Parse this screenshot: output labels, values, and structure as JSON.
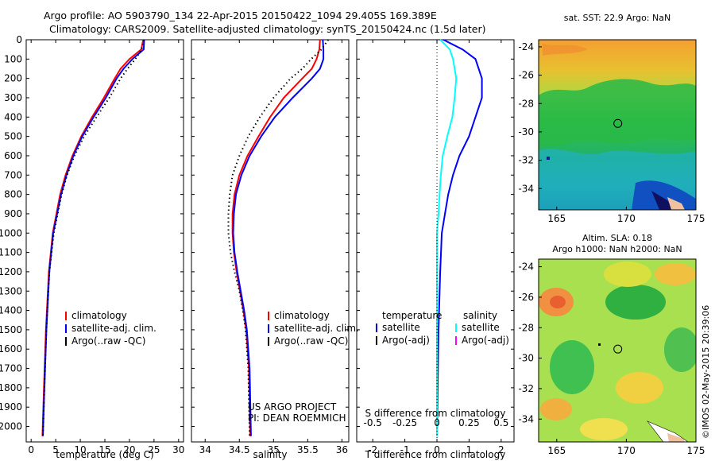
{
  "title": {
    "line1": "Argo profile: AO 5903790_134 22-Apr-2015 20150422_1094 29.405S 169.389E",
    "line2": "Climatology: CARS2009. Satellite-adjusted climatology: synTS_20150424.nc (1.5d later)"
  },
  "chart_data": [
    {
      "type": "line",
      "id": "temperature",
      "xlabel": "temperature (deg C)",
      "ylabel": "",
      "xlim": [
        -1,
        31
      ],
      "ylim": [
        2080,
        0
      ],
      "xticks": [
        "0",
        "5",
        "10",
        "15",
        "20",
        "25",
        "30"
      ],
      "yticks": [
        "0",
        "100",
        "200",
        "300",
        "400",
        "500",
        "600",
        "700",
        "800",
        "900",
        "1000",
        "1100",
        "1200",
        "1300",
        "1400",
        "1500",
        "1600",
        "1700",
        "1800",
        "1900",
        "2000"
      ],
      "depth": [
        0,
        50,
        100,
        150,
        200,
        300,
        400,
        500,
        600,
        700,
        800,
        1000,
        1200,
        1500,
        1800,
        2050
      ],
      "series": [
        {
          "name": "climatology",
          "color": "#ff0000",
          "style": "solid",
          "values": [
            22.8,
            22.4,
            20.0,
            18.2,
            17.0,
            14.8,
            12.4,
            10.2,
            8.4,
            7.0,
            5.9,
            4.4,
            3.6,
            3.0,
            2.6,
            2.3
          ]
        },
        {
          "name": "satellite-adj. clim.",
          "color": "#0000ff",
          "style": "solid",
          "values": [
            23.0,
            22.9,
            20.6,
            18.8,
            17.4,
            15.2,
            12.7,
            10.4,
            8.6,
            7.2,
            6.1,
            4.5,
            3.7,
            3.1,
            2.7,
            2.4
          ]
        },
        {
          "name": "Argo(..raw -QC)",
          "color": "#000000",
          "style": "dotted",
          "values": [
            22.9,
            22.5,
            21.2,
            19.6,
            18.2,
            15.9,
            13.3,
            10.8,
            8.8,
            7.3,
            6.2,
            4.6,
            3.7,
            3.1,
            2.7,
            2.4
          ]
        }
      ],
      "legend": {
        "entries": [
          "climatology",
          "satellite-adj. clim.",
          "Argo(..raw -QC)"
        ],
        "placement": "bottom-center"
      }
    },
    {
      "type": "line",
      "id": "salinity",
      "xlabel": "salinity",
      "xlim": [
        33.8,
        36.1
      ],
      "ylim": [
        2080,
        0
      ],
      "xticks": [
        "34",
        "34.5",
        "35",
        "35.5",
        "36"
      ],
      "depth": [
        0,
        50,
        100,
        150,
        200,
        300,
        400,
        500,
        600,
        700,
        800,
        900,
        1000,
        1100,
        1200,
        1300,
        1400,
        1500,
        1700,
        2050
      ],
      "series": [
        {
          "name": "climatology",
          "color": "#ff0000",
          "style": "solid",
          "values": [
            35.68,
            35.67,
            35.63,
            35.56,
            35.42,
            35.15,
            34.95,
            34.78,
            34.62,
            34.5,
            34.43,
            34.4,
            34.4,
            34.42,
            34.46,
            34.51,
            34.56,
            34.6,
            34.64,
            34.66
          ]
        },
        {
          "name": "satellite-adj. clim.",
          "color": "#0000ff",
          "style": "solid",
          "values": [
            35.72,
            35.73,
            35.73,
            35.68,
            35.56,
            35.28,
            35.02,
            34.82,
            34.65,
            34.53,
            34.45,
            34.42,
            34.41,
            34.43,
            34.47,
            34.52,
            34.57,
            34.61,
            34.65,
            34.67
          ]
        },
        {
          "name": "Argo(..raw -QC)",
          "color": "#000000",
          "style": "dotted",
          "values": [
            35.8,
            35.7,
            35.55,
            35.42,
            35.25,
            35.0,
            34.8,
            34.63,
            34.5,
            34.4,
            34.36,
            34.34,
            34.34,
            34.37,
            34.43,
            34.5,
            34.55,
            34.59,
            34.63,
            34.65
          ]
        }
      ],
      "legend": {
        "entries": [
          "climatology",
          "satellite-adj. clim.",
          "Argo(..raw -QC)"
        ],
        "placement": "bottom-center"
      },
      "annotations": [
        "US ARGO PROJECT",
        "PI: DEAN ROEMMICH"
      ]
    },
    {
      "type": "line",
      "id": "difference",
      "xlabel": "T difference from climatology",
      "xlabel_top": "S difference from climatology",
      "xlim": [
        -2.5,
        2.4
      ],
      "ylim": [
        2080,
        0
      ],
      "xticks": [
        "-2",
        "-1",
        "0",
        "1",
        "2"
      ],
      "xticks_top": [
        "-0.5",
        "-0.25",
        "0",
        "0.25",
        "0.5"
      ],
      "depth": [
        0,
        50,
        100,
        200,
        300,
        400,
        500,
        600,
        700,
        800,
        900,
        1000,
        1200,
        1500,
        2050
      ],
      "series": [
        {
          "name": "temperature satellite",
          "color": "#0000ff",
          "values": [
            0.2,
            0.8,
            1.2,
            1.4,
            1.4,
            1.2,
            1.0,
            0.7,
            0.5,
            0.35,
            0.25,
            0.15,
            0.1,
            0.05,
            0.0
          ]
        },
        {
          "name": "salinity satellite",
          "color": "#00ffff",
          "values": [
            0.1,
            0.4,
            0.5,
            0.6,
            0.55,
            0.48,
            0.32,
            0.18,
            0.12,
            0.08,
            0.05,
            0.0,
            0.0,
            0.0,
            0.0
          ]
        }
      ],
      "legend": {
        "temperature_header": "temperature",
        "salinity_header": "salinity",
        "temperature_entries": [
          "satellite",
          "Argo(-adj)"
        ],
        "salinity_entries": [
          "satellite",
          "Argo(-adj)"
        ],
        "colors": [
          "#0000ff",
          "#000000",
          "#00ffff",
          "#ff00ff"
        ]
      }
    },
    {
      "type": "heatmap",
      "id": "sst-map",
      "title": "sat. SST: 22.9 Argo: NaN",
      "xlim": [
        163.7,
        175
      ],
      "ylim": [
        -35.5,
        -23.5
      ],
      "xticks": [
        "165",
        "170",
        "175"
      ],
      "yticks": [
        "-24",
        "-26",
        "-28",
        "-30",
        "-32",
        "-34"
      ],
      "marker": {
        "lon": 169.389,
        "lat": -29.405
      }
    },
    {
      "type": "heatmap",
      "id": "sla-map",
      "title": "Altim. SLA: 0.18",
      "subtitle": "Argo h1000: NaN h2000: NaN",
      "xlim": [
        163.7,
        175
      ],
      "ylim": [
        -35.5,
        -23.5
      ],
      "xticks": [
        "165",
        "170",
        "175"
      ],
      "yticks": [
        "-24",
        "-26",
        "-28",
        "-30",
        "-32",
        "-34"
      ],
      "marker": {
        "lon": 169.389,
        "lat": -29.405
      }
    }
  ],
  "credit": "©IMOS 02-May-2015 20:39:06"
}
